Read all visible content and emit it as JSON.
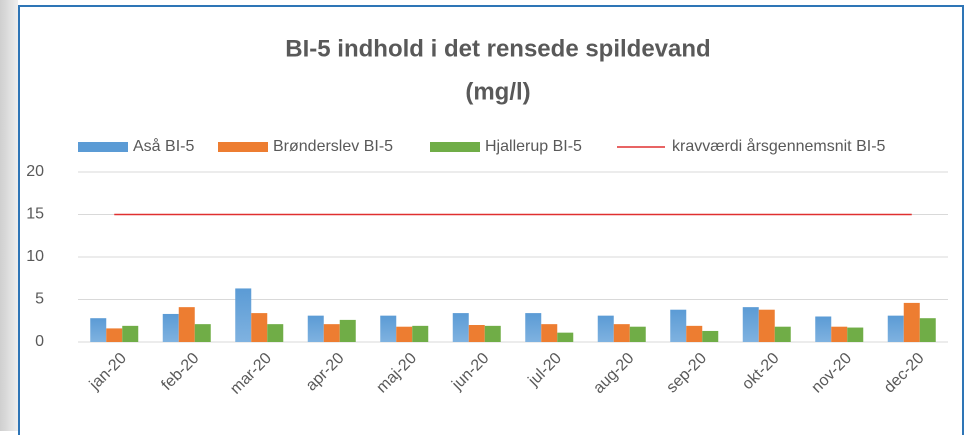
{
  "chart_data": {
    "type": "bar",
    "title": [
      "BI-5 indhold i det rensede spildevand",
      "(mg/l)"
    ],
    "categories": [
      "jan-20",
      "feb-20",
      "mar-20",
      "apr-20",
      "maj-20",
      "jun-20",
      "jul-20",
      "aug-20",
      "sep-20",
      "okt-20",
      "nov-20",
      "dec-20"
    ],
    "series": [
      {
        "name": "Aså BI-5",
        "color": "#5b9bd5",
        "values": [
          2.8,
          3.3,
          6.3,
          3.1,
          3.1,
          3.4,
          3.4,
          3.1,
          3.8,
          4.1,
          3.0,
          3.1
        ]
      },
      {
        "name": "Brønderslev BI-5",
        "color": "#ed7d31",
        "values": [
          1.6,
          4.1,
          3.4,
          2.1,
          1.8,
          2.0,
          2.1,
          2.1,
          1.9,
          3.8,
          1.8,
          4.6
        ]
      },
      {
        "name": "Hjallerup BI-5",
        "color": "#70ad47",
        "values": [
          1.9,
          2.1,
          2.1,
          2.6,
          1.9,
          1.9,
          1.1,
          1.8,
          1.3,
          1.8,
          1.7,
          2.8
        ]
      },
      {
        "name": "kravværdi årsgennemsnit BI-5",
        "color": "#e03030",
        "type": "line",
        "values": [
          15,
          15,
          15,
          15,
          15,
          15,
          15,
          15,
          15,
          15,
          15,
          15
        ]
      }
    ],
    "ylim": [
      0,
      20
    ],
    "yticks": [
      0,
      5,
      10,
      15,
      20
    ],
    "grid": true,
    "legend": "top"
  }
}
